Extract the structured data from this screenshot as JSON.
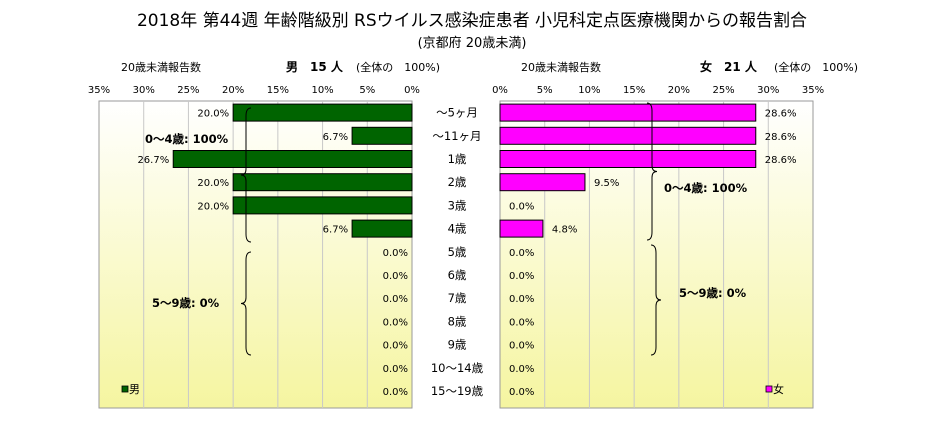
{
  "title": "2018年 第44週 年齢階級別 RSウイルス感染症患者 小児科定点医療機関からの報告割合",
  "subtitle": "(京都府 20歳未満)",
  "male_header": {
    "count_label": "20歳未満報告数",
    "gender_count": "男　15 人",
    "total_note": "(全体の　100%)"
  },
  "female_header": {
    "count_label": "20歳未満報告数",
    "gender_count": "女　21 人",
    "total_note": "(全体の　100%)"
  },
  "colors": {
    "male": "#006400",
    "female": "#ff00ff",
    "plot_bg_top": "#ffffff",
    "plot_bg_bottom": "#f5f5a0",
    "grid": "#c8c8c8"
  },
  "chart_data": {
    "type": "bar",
    "orientation": "horizontal-butterfly",
    "categories": [
      "～5ヶ月",
      "～11ヶ月",
      "1歳",
      "2歳",
      "3歳",
      "4歳",
      "5歳",
      "6歳",
      "7歳",
      "8歳",
      "9歳",
      "10～14歳",
      "15～19歳"
    ],
    "series": [
      {
        "name": "男",
        "values": [
          20.0,
          6.7,
          26.7,
          20.0,
          20.0,
          6.7,
          0,
          0,
          0,
          0,
          0,
          0,
          0
        ],
        "labels": [
          "20.0%",
          "6.7%",
          "26.7%",
          "20.0%",
          "20.0%",
          "6.7%",
          "0.0%",
          "0.0%",
          "0.0%",
          "0.0%",
          "0.0%",
          "0.0%",
          "0.0%"
        ]
      },
      {
        "name": "女",
        "values": [
          28.6,
          28.6,
          28.6,
          9.5,
          0,
          4.8,
          0,
          0,
          0,
          0,
          0,
          0,
          0
        ],
        "labels": [
          "28.6%",
          "28.6%",
          "28.6%",
          "9.5%",
          "0.0%",
          "4.8%",
          "0.0%",
          "0.0%",
          "0.0%",
          "0.0%",
          "0.0%",
          "0.0%",
          "0.0%"
        ]
      }
    ],
    "xlim": [
      0,
      35
    ],
    "male_ticks": [
      "35%",
      "30%",
      "25%",
      "20%",
      "15%",
      "10%",
      "5%",
      "0%"
    ],
    "female_ticks": [
      "0%",
      "5%",
      "10%",
      "15%",
      "20%",
      "25%",
      "30%",
      "35%"
    ],
    "annotations": {
      "male_0_4": "0～4歳: 100%",
      "male_5_9": "5～9歳: 0%",
      "female_0_4": "0～4歳: 100%",
      "female_5_9": "5～9歳: 0%"
    },
    "legend": {
      "male": "男",
      "female": "女"
    }
  }
}
